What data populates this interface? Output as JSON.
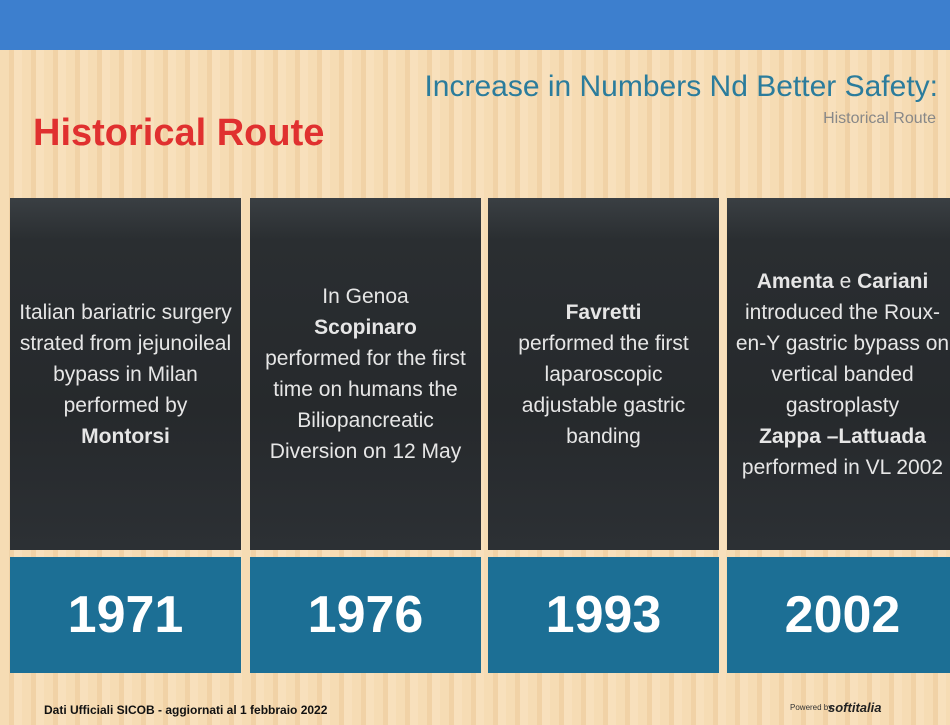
{
  "header": {
    "title": "Increase in  Numbers Nd Better Safety:",
    "heading": "Historical Route",
    "subtitle": "Historical Route"
  },
  "columns": [
    {
      "paragraphs": [
        [
          {
            "text": "Italian bariatric surgery strated from jejunoileal bypass in Milan performed by"
          }
        ],
        [
          {
            "text": "Montorsi",
            "bold": true
          }
        ]
      ],
      "year": "1971"
    },
    {
      "paragraphs": [
        [
          {
            "text": "In Genoa"
          }
        ],
        [
          {
            "text": "Scopinaro",
            "bold": true
          }
        ],
        [
          {
            "text": "performed for the first time on humans the Biliopancreatic Diversion on 12 May"
          }
        ]
      ],
      "year": "1976"
    },
    {
      "paragraphs": [
        [
          {
            "text": "Favretti",
            "bold": true
          }
        ],
        [
          {
            "text": "performed the first laparoscopic adjustable gastric banding"
          }
        ]
      ],
      "year": "1993"
    },
    {
      "paragraphs": [
        [
          {
            "text": "Amenta",
            "bold": true
          },
          {
            "text": " e "
          },
          {
            "text": "Cariani",
            "bold": true
          }
        ],
        [
          {
            "text": "introduced the Roux-en-Y gastric bypass on vertical banded gastroplasty"
          }
        ],
        [
          {
            "text": "Zappa –Lattuada",
            "bold": true
          }
        ],
        [
          {
            "text": "performed in VL 2002"
          }
        ]
      ],
      "year": "2002"
    }
  ],
  "footer": {
    "source": "Dati Ufficiali SICOB - aggiornati al 1 febbraio 2022",
    "powered": "Powered by",
    "brand": "softitalia"
  }
}
